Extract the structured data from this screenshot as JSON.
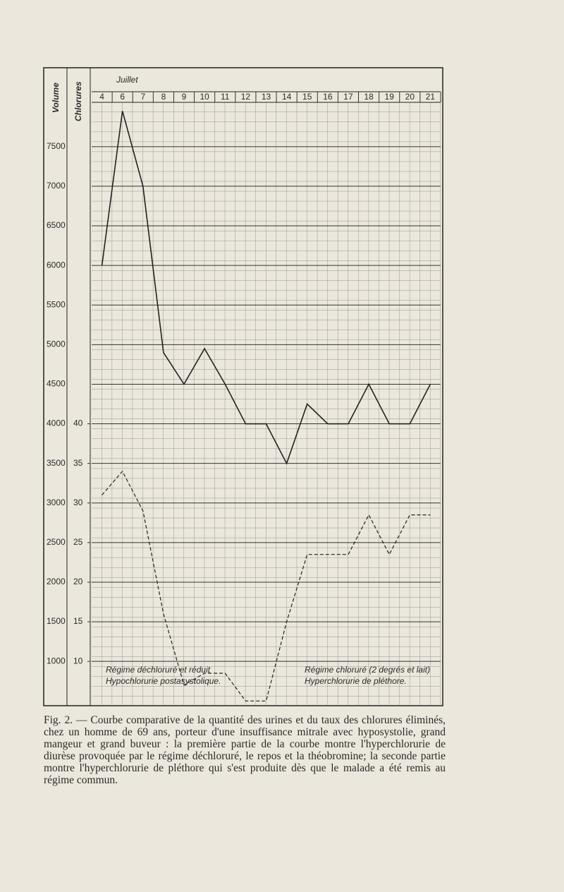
{
  "chart_data": {
    "type": "line",
    "title": "Juillet",
    "ylabel": "Volume",
    "y2label": "Chlorures",
    "categories": [
      "4",
      "6",
      "7",
      "8",
      "9",
      "10",
      "11",
      "12",
      "13",
      "14",
      "15",
      "16",
      "17",
      "18",
      "19",
      "20",
      "21"
    ],
    "series": [
      {
        "name": "Volume",
        "color": "#222222",
        "line_style": "solid",
        "values": [
          6000,
          7950,
          7000,
          4900,
          4500,
          4950,
          4500,
          4000,
          4000,
          3500,
          4250,
          4000,
          4000,
          4500,
          4000,
          4000,
          4500
        ]
      },
      {
        "name": "Chlorures",
        "color": "#222222",
        "line_style": "dashed",
        "axis": "y2",
        "values": [
          31,
          34,
          29,
          16,
          7,
          8.5,
          8.5,
          5,
          5,
          15,
          23.5,
          23.5,
          23.5,
          28.5,
          23.5,
          28.5,
          28.5
        ]
      }
    ],
    "ylim": [
      440,
      8060
    ],
    "yticks": [
      1000,
      1500,
      2000,
      2500,
      3000,
      3500,
      4000,
      4500,
      5000,
      5500,
      6000,
      6500,
      7000,
      7500
    ],
    "y2lim": [
      4.4,
      80.6
    ],
    "y2ticks": [
      10,
      15,
      20,
      25,
      30,
      35,
      40
    ],
    "grid": true,
    "annotations": [
      "Régime déchloruré et réduit",
      "Hypochlorurie postasystolique.",
      "Régime chloruré (2 degrés et lait)",
      "Hyperchlorurie de pléthore."
    ],
    "caption": "Fig. 2. — Courbe comparative de la quantité des urines et du taux des chlorures éliminés, chez un homme de 69 ans, porteur d'une insuffisance mitrale avec hyposystolie, grand mangeur et grand buveur : la première partie de la courbe montre l'hyperchlorurie de diurèse provoquée par le régime déchloruré, le repos et la théobromine; la seconde partie montre l'hyperchlorurie de pléthore qui s'est produite dès que le malade a été remis au régime commun."
  }
}
